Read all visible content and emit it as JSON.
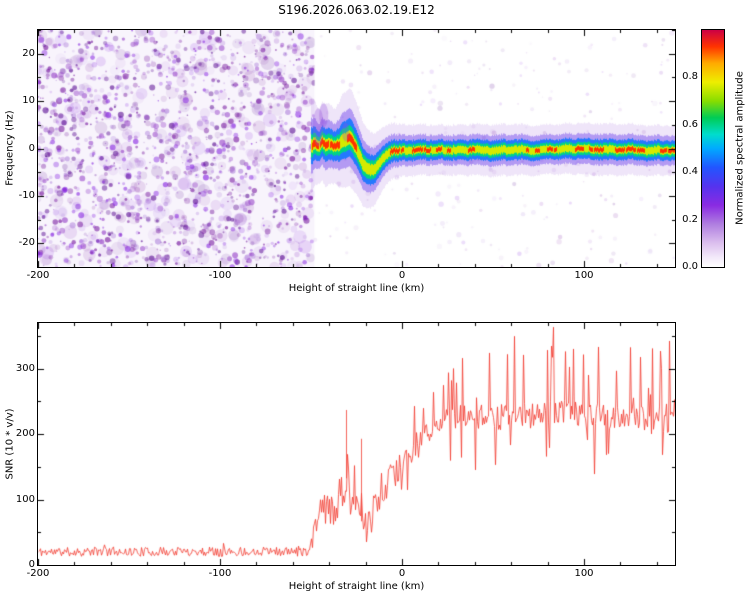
{
  "title": "S196.2026.063.02.19.E12",
  "chart_data": [
    {
      "type": "heatmap",
      "panel": "spectrogram",
      "xlabel": "Height of straight line (km)",
      "ylabel": "Frequency (Hz)",
      "xlim": [
        -200,
        150
      ],
      "ylim": [
        -25,
        25
      ],
      "x_ticks": [
        -200,
        -100,
        0,
        100
      ],
      "y_ticks": [
        -20,
        -10,
        0,
        10,
        20
      ],
      "colorbar": {
        "label": "Normalized spectral amplitude",
        "ticks": [
          "0.0",
          "0.2",
          "0.4",
          "0.6",
          "0.8"
        ],
        "tick_values": [
          0,
          0.2,
          0.4,
          0.6,
          0.8
        ],
        "max": 1.0,
        "stops": [
          [
            0.0,
            "#ffffff"
          ],
          [
            0.04,
            "#f3eafa"
          ],
          [
            0.1,
            "#dcc0ee"
          ],
          [
            0.18,
            "#b07fe0"
          ],
          [
            0.26,
            "#8a2be2"
          ],
          [
            0.34,
            "#5533ee"
          ],
          [
            0.42,
            "#2255ff"
          ],
          [
            0.5,
            "#00aaff"
          ],
          [
            0.56,
            "#00ddcc"
          ],
          [
            0.63,
            "#00cc55"
          ],
          [
            0.7,
            "#88dd00"
          ],
          [
            0.78,
            "#eeee00"
          ],
          [
            0.86,
            "#ffaa00"
          ],
          [
            0.93,
            "#ff3300"
          ],
          [
            1.0,
            "#cc0044"
          ]
        ]
      },
      "noise_region": {
        "x_range": [
          -200,
          -48
        ],
        "dot_count": 1500,
        "blob_count": 300,
        "seed": 7,
        "colors": [
          "#8a2be2",
          "#7b1fa2",
          "#9c4dcc",
          "#5e1296",
          "#b388dd"
        ]
      },
      "sparse_region": {
        "x_range": [
          -48,
          150
        ],
        "dot_count": 260
      },
      "echo_trace": {
        "start_x": -50,
        "seed": 3,
        "center": [
          [
            -50,
            0.5
          ],
          [
            -48,
            1.2
          ],
          [
            -46,
            0.4
          ],
          [
            -44,
            1.4
          ],
          [
            -42,
            0.6
          ],
          [
            -40,
            1.0
          ],
          [
            -38,
            0.4
          ],
          [
            -35,
            0.9
          ],
          [
            -32,
            1.8
          ],
          [
            -29,
            2.4
          ],
          [
            -27,
            1.2
          ],
          [
            -25,
            -0.2
          ],
          [
            -23,
            -2.2
          ],
          [
            -21,
            -3.6
          ],
          [
            -19,
            -4.3
          ],
          [
            -17,
            -4.6
          ],
          [
            -15,
            -4.2
          ],
          [
            -13,
            -3.4
          ],
          [
            -11,
            -2.4
          ],
          [
            -9,
            -1.4
          ],
          [
            -7,
            -0.8
          ],
          [
            -5,
            -0.4
          ],
          [
            -2,
            -0.5
          ],
          [
            0,
            -0.3
          ],
          [
            5,
            -0.5
          ],
          [
            10,
            -0.1
          ],
          [
            15,
            -0.4
          ],
          [
            20,
            -0.1
          ],
          [
            25,
            -0.5
          ],
          [
            30,
            -0.2
          ],
          [
            35,
            -0.5
          ],
          [
            40,
            -0.1
          ],
          [
            45,
            -0.4
          ],
          [
            50,
            -0.5
          ],
          [
            55,
            -0.2
          ],
          [
            60,
            -0.5
          ],
          [
            65,
            -0.1
          ],
          [
            70,
            -0.4
          ],
          [
            75,
            -0.5
          ],
          [
            80,
            -0.1
          ],
          [
            85,
            -0.3
          ],
          [
            90,
            0.1
          ],
          [
            95,
            -0.1
          ],
          [
            100,
            0.2
          ],
          [
            105,
            -0.1
          ],
          [
            110,
            -0.3
          ],
          [
            115,
            -0.1
          ],
          [
            120,
            -0.4
          ],
          [
            125,
            -0.1
          ],
          [
            130,
            -0.3
          ],
          [
            135,
            -0.5
          ],
          [
            140,
            -0.3
          ],
          [
            145,
            -0.5
          ],
          [
            150,
            -0.4
          ]
        ],
        "spread": [
          [
            -50,
            1.9
          ],
          [
            -46,
            1.5
          ],
          [
            -42,
            1.7
          ],
          [
            -37,
            1.5
          ],
          [
            -33,
            1.9
          ],
          [
            -28,
            2.0
          ],
          [
            -24,
            1.8
          ],
          [
            -19,
            1.6
          ],
          [
            -14,
            1.4
          ],
          [
            -9,
            1.2
          ],
          [
            -4,
            1.1
          ],
          [
            0,
            1.05
          ],
          [
            20,
            1.0
          ],
          [
            50,
            1.05
          ],
          [
            80,
            1.0
          ],
          [
            110,
            1.05
          ],
          [
            150,
            1.0
          ]
        ],
        "plumes": [
          [
            -46,
            4.5,
            3,
            4
          ],
          [
            -43,
            7,
            2.5,
            2.5
          ],
          [
            -31,
            3.5,
            2,
            2
          ]
        ]
      }
    },
    {
      "type": "line",
      "panel": "snr",
      "series_color": "#f23b30",
      "xlabel": "Height of straight line (km)",
      "ylabel": "SNR (10 * v/v)",
      "xlim": [
        -200,
        150
      ],
      "ylim": [
        0,
        370
      ],
      "x_ticks": [
        -200,
        -100,
        0,
        100
      ],
      "y_ticks": [
        0,
        100,
        200,
        300
      ],
      "seed": 11,
      "baseline": [
        [
          -200,
          20
        ],
        [
          -180,
          20
        ],
        [
          -160,
          21
        ],
        [
          -140,
          20
        ],
        [
          -120,
          21
        ],
        [
          -100,
          20
        ],
        [
          -80,
          21
        ],
        [
          -60,
          20
        ],
        [
          -52,
          21
        ],
        [
          -49,
          45
        ],
        [
          -47,
          80
        ],
        [
          -45,
          70
        ],
        [
          -43,
          90
        ],
        [
          -41,
          80
        ],
        [
          -39,
          95
        ],
        [
          -37,
          85
        ],
        [
          -35,
          100
        ],
        [
          -33,
          90
        ],
        [
          -31,
          115
        ],
        [
          -30,
          150
        ],
        [
          -29,
          105
        ],
        [
          -27,
          90
        ],
        [
          -25,
          75
        ],
        [
          -23,
          65
        ],
        [
          -21,
          72
        ],
        [
          -19,
          68
        ],
        [
          -17,
          80
        ],
        [
          -15,
          90
        ],
        [
          -13,
          100
        ],
        [
          -11,
          112
        ],
        [
          -9,
          120
        ],
        [
          -7,
          130
        ],
        [
          -5,
          138
        ],
        [
          -3,
          145
        ],
        [
          -1,
          152
        ],
        [
          2,
          162
        ],
        [
          5,
          172
        ],
        [
          8,
          182
        ],
        [
          11,
          192
        ],
        [
          14,
          200
        ],
        [
          17,
          208
        ],
        [
          20,
          215
        ],
        [
          24,
          220
        ],
        [
          28,
          226
        ],
        [
          33,
          228
        ],
        [
          40,
          224
        ],
        [
          47,
          230
        ],
        [
          55,
          226
        ],
        [
          62,
          232
        ],
        [
          70,
          227
        ],
        [
          78,
          233
        ],
        [
          85,
          228
        ],
        [
          92,
          234
        ],
        [
          100,
          226
        ],
        [
          108,
          230
        ],
        [
          115,
          224
        ],
        [
          122,
          229
        ],
        [
          130,
          223
        ],
        [
          138,
          227
        ],
        [
          144,
          221
        ],
        [
          150,
          226
        ]
      ],
      "noise_segments": [
        {
          "x_range": [
            -200,
            -50
          ],
          "jitter": 7,
          "spike_rate": 0.02,
          "spike_max": 15,
          "dip_rate": 0,
          "dip_max": 0
        },
        {
          "x_range": [
            -50,
            -22
          ],
          "jitter": 28,
          "spike_rate": 0.1,
          "spike_max": 90,
          "dip_rate": 0.05,
          "dip_max": 40
        },
        {
          "x_range": [
            -22,
            10
          ],
          "jitter": 22,
          "spike_rate": 0.06,
          "spike_max": 55,
          "dip_rate": 0.05,
          "dip_max": 45
        },
        {
          "x_range": [
            10,
            150
          ],
          "jitter": 20,
          "spike_rate": 0.14,
          "spike_max": 125,
          "dip_rate": 0.08,
          "dip_max": 80
        }
      ],
      "spikes": [
        [
          -30.5,
          237
        ],
        [
          -22.5,
          193
        ]
      ]
    }
  ]
}
